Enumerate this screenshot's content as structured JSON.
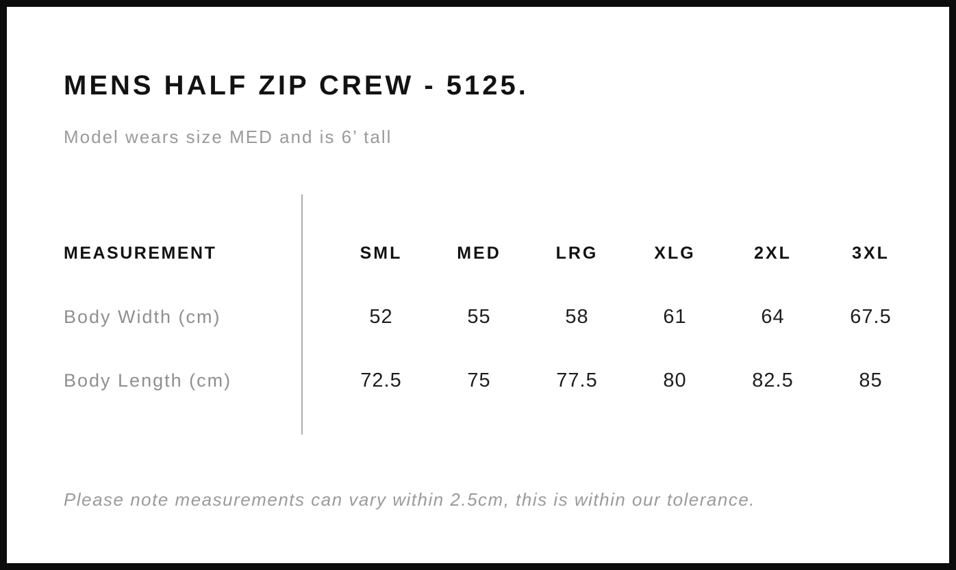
{
  "page": {
    "title": "MENS HALF ZIP CREW - 5125.",
    "subtitle": "Model wears size MED and is 6’ tall",
    "tolerance_note": "Please note measurements can vary within 2.5cm, this is within our tolerance."
  },
  "size_chart": {
    "measurement_header": "MEASUREMENT",
    "size_headers": [
      "SML",
      "MED",
      "LRG",
      "XLG",
      "2XL",
      "3XL"
    ],
    "rows": [
      {
        "label": "Body Width (cm)",
        "values": [
          "52",
          "55",
          "58",
          "61",
          "64",
          "67.5"
        ]
      },
      {
        "label": "Body Length (cm)",
        "values": [
          "72.5",
          "75",
          "77.5",
          "80",
          "82.5",
          "85"
        ]
      }
    ]
  },
  "chart_data": {
    "type": "table",
    "title": "MENS HALF ZIP CREW - 5125.",
    "columns": [
      "MEASUREMENT",
      "SML",
      "MED",
      "LRG",
      "XLG",
      "2XL",
      "3XL"
    ],
    "rows": [
      [
        "Body Width (cm)",
        52,
        55,
        58,
        61,
        64,
        67.5
      ],
      [
        "Body Length (cm)",
        72.5,
        75,
        77.5,
        80,
        82.5,
        85
      ]
    ],
    "notes": [
      "Model wears size MED and is 6’ tall",
      "Please note measurements can vary within 2.5cm, this is within our tolerance."
    ]
  },
  "colors": {
    "frame": "#0c0c0c",
    "background": "#ffffff",
    "title_text": "#121212",
    "muted_text": "#9a9a9a",
    "row_label_text": "#8f8f8f",
    "value_text": "#1d1d1d",
    "divider": "#adadad"
  }
}
